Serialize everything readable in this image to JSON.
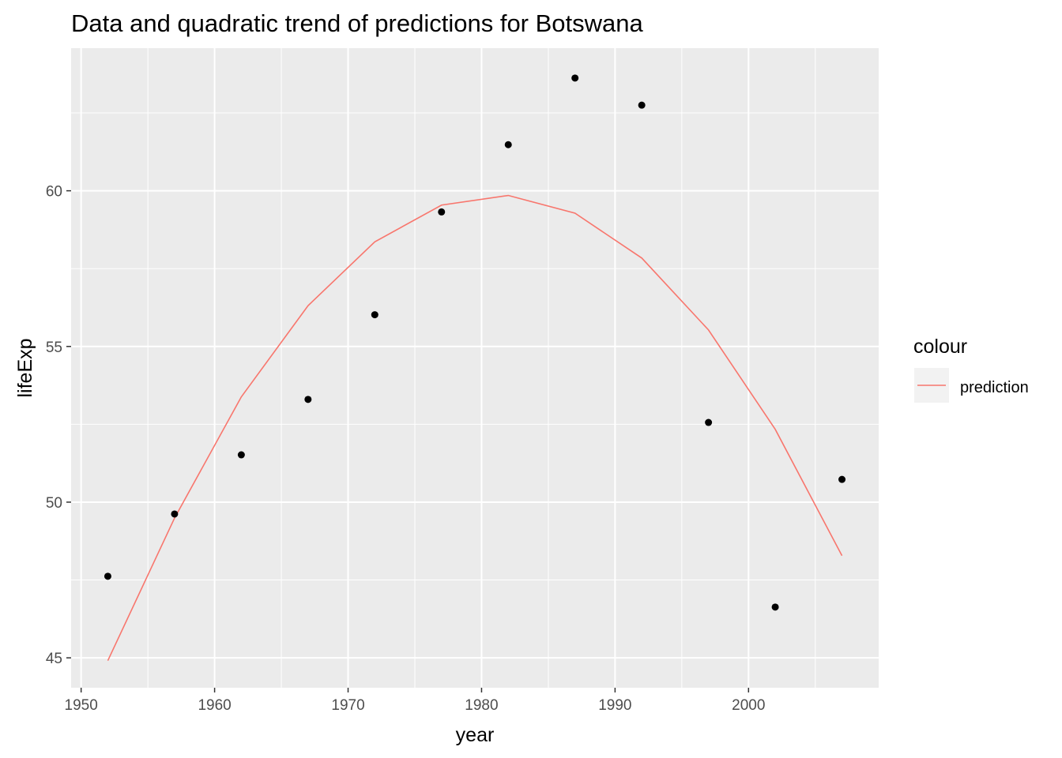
{
  "chart_data": {
    "type": "scatter",
    "title": "Data and quadratic trend of predictions for Botswana",
    "xlabel": "year",
    "ylabel": "lifeExp",
    "xlim": [
      1949.25,
      2009.75
    ],
    "ylim": [
      44.04,
      64.58
    ],
    "x_ticks": [
      1950,
      1960,
      1970,
      1980,
      1990,
      2000
    ],
    "y_ticks": [
      45,
      50,
      55,
      60
    ],
    "grid": true,
    "legend": {
      "title": "colour",
      "position": "right",
      "entries": [
        "prediction"
      ]
    },
    "colors": {
      "points": "#000000",
      "prediction": "#F8766D",
      "panel": "#EBEBEB",
      "grid": "#FFFFFF"
    },
    "series": [
      {
        "type": "scatter",
        "x": [
          1952,
          1957,
          1962,
          1967,
          1972,
          1977,
          1982,
          1987,
          1992,
          1997,
          2002,
          2007
        ],
        "y": [
          47.62,
          49.62,
          51.52,
          53.3,
          56.02,
          59.32,
          61.48,
          63.62,
          62.75,
          52.56,
          46.63,
          50.73
        ]
      },
      {
        "name": "prediction",
        "type": "line",
        "x": [
          1952,
          1957,
          1962,
          1967,
          1972,
          1977,
          1982,
          1987,
          1992,
          1997,
          2002,
          2007
        ],
        "y": [
          44.91,
          49.49,
          53.38,
          56.31,
          58.36,
          59.54,
          59.85,
          59.28,
          57.84,
          55.53,
          52.34,
          48.28
        ]
      }
    ]
  }
}
